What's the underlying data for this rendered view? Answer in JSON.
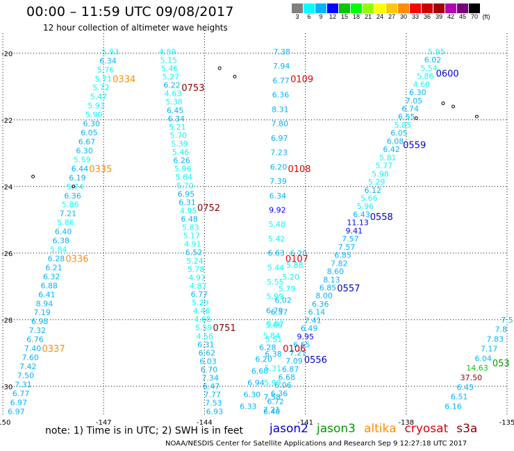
{
  "header": {
    "title": "00:00 – 11:59 UTC 09/08/2017",
    "subtitle": "12 hour collection of altimeter wave heights"
  },
  "colorbar": {
    "colors": [
      "#808080",
      "#00ffff",
      "#00b4ff",
      "#0000ff",
      "#00c800",
      "#00ff00",
      "#90ff00",
      "#ffff00",
      "#ffc800",
      "#ff8c00",
      "#ff0000",
      "#d20000",
      "#a00000",
      "#b400b4",
      "#780078",
      "#000000"
    ],
    "labels": [
      "3",
      "6",
      "9",
      "12",
      "15",
      "18",
      "21",
      "24",
      "27",
      "30",
      "33",
      "36",
      "39",
      "42",
      "45",
      "70",
      "(ft)"
    ]
  },
  "footer": {
    "note": "note: 1) Time is in UTC; 2) SWH is in feet",
    "legend": [
      {
        "name": "jason2",
        "color": "#0000cc"
      },
      {
        "name": "jason3",
        "color": "#009900"
      },
      {
        "name": "altika",
        "color": "#ff8c00"
      },
      {
        "name": "cryosat",
        "color": "#dd0000"
      },
      {
        "name": "s3a",
        "color": "#880000"
      }
    ],
    "credit": "NOAA/NESDIS Center for Satellite Applications and Research    Sep  9 12:27:18 UTC 2017"
  },
  "chart_data": {
    "type": "scatter",
    "xlim": [
      -150,
      -135
    ],
    "ylim": [
      -30.9,
      -19.4
    ],
    "x_ticks": [
      "-150",
      "-147",
      "-144",
      "-141",
      "-138",
      "-135"
    ],
    "y_ticks": [
      "-20",
      "-22",
      "-24",
      "-26",
      "-28",
      "-30"
    ],
    "grid": true,
    "tracks": [
      {
        "satellite": "altika",
        "times": [
          "0334",
          "0335",
          "0336",
          "0337"
        ],
        "start": [
          -146.8,
          -19.95
        ],
        "end": [
          -149.6,
          -30.75
        ],
        "values": [
          "5.93",
          "6.34",
          "5.76",
          "5.71",
          "5.72",
          "5.47",
          "5.93",
          "5.90",
          "6.30",
          "6.05",
          "6.67",
          "6.30",
          "5.59",
          "6.44",
          "6.19",
          "5.74",
          "6.36",
          "5.86",
          "7.21",
          "5.86",
          "6.40",
          "6.38",
          "5.84",
          "6.28",
          "6.21",
          "6.32",
          "6.88",
          "6.41",
          "8.94",
          "7.19",
          "6.98",
          "7.32",
          "6.76",
          "7.40",
          "7.60",
          "7.42",
          "7.50",
          "7.31",
          "6.77",
          "6.97",
          "6.97"
        ]
      },
      {
        "satellite": "s3a",
        "times": [
          "0753",
          "0752",
          "0751"
        ],
        "start": [
          -145.1,
          -19.95
        ],
        "end": [
          -143.7,
          -30.75
        ],
        "values": [
          "4.89",
          "5.15",
          "5.46",
          "5.27",
          "6.22",
          "4.63",
          "5.38",
          "6.45",
          "6.34",
          "5.21",
          "5.70",
          "5.39",
          "5.46",
          "6.26",
          "5.96",
          "5.64",
          "5.70",
          "6.95",
          "6.31",
          "4.95",
          "6.48",
          "5.83",
          "5.17",
          "4.91",
          "6.52",
          "5.24",
          "5.78",
          "4.97",
          "4.87",
          "6.77",
          "5.29",
          "4.46",
          "4.68",
          "5.59",
          "4.56",
          "6.31",
          "6.62",
          "6.03",
          "6.70",
          "7.34",
          "6.47",
          "7.77",
          "7.53",
          "6.93"
        ]
      },
      {
        "satellite": "s3a",
        "times": [],
        "start": [
          -141.2,
          -26.0
        ],
        "end": [
          -142.7,
          -30.6
        ],
        "values": [
          "6.20",
          "5.88",
          "5.20",
          "5.79",
          "6.02",
          "6.57",
          "5.87",
          "5.84",
          "6.28",
          "6.20",
          "6.68",
          "6.94",
          "6.30",
          "6.33"
        ]
      },
      {
        "satellite": "jason2",
        "times": [
          "0600",
          "0559",
          "0558",
          "0557",
          "0556"
        ],
        "start": [
          -137.1,
          -19.95
        ],
        "end": [
          -142.0,
          -30.7
        ],
        "values": [
          "5.95",
          "6.02",
          "5.54",
          "5.86",
          "4.60",
          "6.30",
          "7.05",
          "6.74",
          "6.55",
          "5.85",
          "6.05",
          "6.08",
          "6.42",
          "5.81",
          "5.77",
          "5.98",
          "5.29",
          "6.12",
          "5.66",
          "5.96",
          "6.43",
          "11.13",
          "9.41",
          "7.57",
          "7.57",
          "6.85",
          "7.82",
          "8.60",
          "8.13",
          "6.85",
          "8.00",
          "6.36",
          "6.14",
          "7.41",
          "6.49",
          "9.95",
          "6.65",
          "7.21",
          "7.09",
          "6.87",
          "6.68",
          "6.06",
          "6.36",
          "6.72",
          "7.21"
        ]
      },
      {
        "satellite": "cryosat",
        "times": [
          "0109",
          "0108",
          "0107",
          "0106"
        ],
        "start": [
          -141.7,
          -19.95
        ],
        "end": [
          -142.0,
          -30.75
        ],
        "values": [
          "7.38",
          "7.94",
          "6.77",
          "6.36",
          "8.31",
          "7.80",
          "6.97",
          "7.23",
          "6.20",
          "7.39",
          "6.34",
          "9.92",
          "5.48",
          "5.42",
          "6.63",
          "5.44",
          "5.55",
          "5.99",
          "6.79",
          "5.69",
          "5.51",
          "6.38",
          "5.31",
          "5.99",
          "7.58",
          "6.40"
        ]
      },
      {
        "satellite": "jason3",
        "times": [
          "053"
        ],
        "start": [
          -135.0,
          -28.0
        ],
        "end": [
          -136.6,
          -30.6
        ],
        "values": [
          "7.5",
          "7.8",
          "7.83",
          "7.17",
          "6.04",
          "14.63",
          "37.50",
          "6.45",
          "6.51",
          "6.16"
        ]
      }
    ]
  }
}
